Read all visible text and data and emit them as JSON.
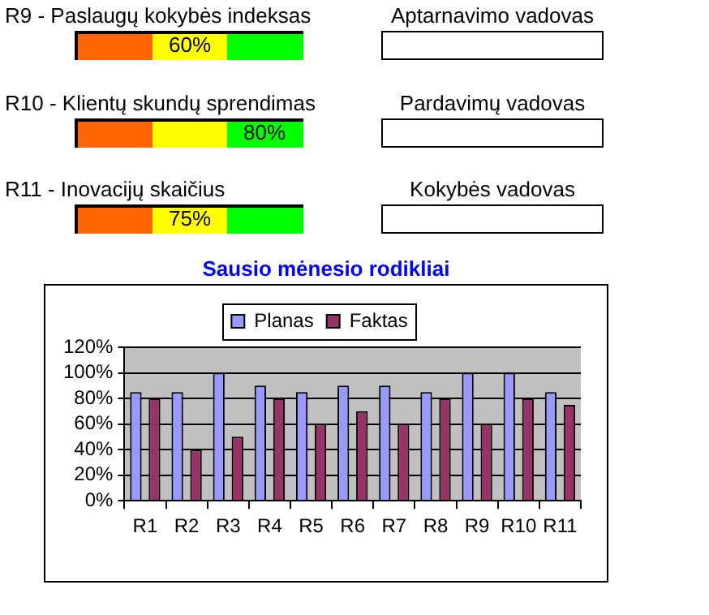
{
  "chart_data": [
    {
      "type": "other",
      "annotations": [
        "R9 - Paslaugų kokybės indeksas",
        "60%",
        "Aptarnavimo vadovas",
        "R10 - Klientų skundų sprendimas",
        "80%",
        "Pardavimų vadovas",
        "R11 - Inovacijų skaičius",
        "75%",
        "Kokybės vadovas"
      ]
    },
    {
      "type": "bar",
      "title": "Sausio mėnesio rodikliai",
      "categories": [
        "R1",
        "R2",
        "R3",
        "R4",
        "R5",
        "R6",
        "R7",
        "R8",
        "R9",
        "R10",
        "R11"
      ],
      "series": [
        {
          "name": "Planas",
          "color": "#9999ff",
          "values": [
            85,
            85,
            100,
            90,
            85,
            90,
            90,
            85,
            100,
            100,
            85
          ]
        },
        {
          "name": "Faktas",
          "color": "#993366",
          "values": [
            80,
            40,
            50,
            80,
            60,
            70,
            60,
            80,
            60,
            80,
            75
          ]
        }
      ],
      "ylim": [
        0,
        120
      ],
      "yticks": [
        {
          "value": 0,
          "label": "0%"
        },
        {
          "value": 20,
          "label": "20%"
        },
        {
          "value": 40,
          "label": "40%"
        },
        {
          "value": 60,
          "label": "60%"
        },
        {
          "value": 80,
          "label": "80%"
        },
        {
          "value": 100,
          "label": "100%"
        },
        {
          "value": 120,
          "label": "120%"
        }
      ],
      "grid": "y",
      "legend": "top"
    }
  ]
}
